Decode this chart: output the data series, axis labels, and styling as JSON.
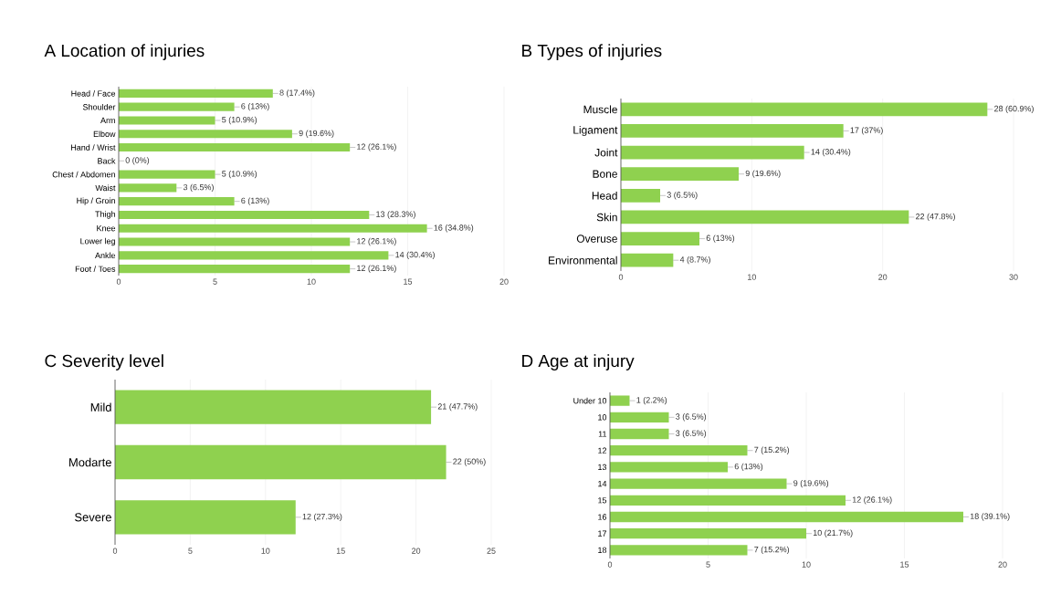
{
  "chart_data": [
    {
      "type": "bar",
      "orientation": "horizontal",
      "title": "A Location of injuries",
      "categories": [
        "Head / Face",
        "Shoulder",
        "Arm",
        "Elbow",
        "Hand / Wrist",
        "Back",
        "Chest / Abdomen",
        "Waist",
        "Hip / Groin",
        "Thigh",
        "Knee",
        "Lower leg",
        "Ankle",
        "Foot / Toes"
      ],
      "values": [
        8,
        6,
        5,
        9,
        12,
        0,
        5,
        3,
        6,
        13,
        16,
        12,
        14,
        12
      ],
      "value_labels": [
        "8 (17.4%)",
        "6 (13%)",
        "5 (10.9%)",
        "9 (19.6%)",
        "12 (26.1%)",
        "0 (0%)",
        "5 (10.9%)",
        "3 (6.5%)",
        "6 (13%)",
        "13 (28.3%)",
        "16 (34.8%)",
        "12 (26.1%)",
        "14 (30.4%)",
        "12 (26.1%)"
      ],
      "color": "#8fd14f",
      "xlim": [
        0,
        20
      ],
      "xticks": [
        0,
        5,
        10,
        15,
        20
      ],
      "grid": "x"
    },
    {
      "type": "bar",
      "orientation": "horizontal",
      "title": "B Types of injuries",
      "categories": [
        "Muscle",
        "Ligament",
        "Joint",
        "Bone",
        "Head",
        "Skin",
        "Overuse",
        "Environmental"
      ],
      "values": [
        28,
        17,
        14,
        9,
        3,
        22,
        6,
        4
      ],
      "value_labels": [
        "28 (60.9%)",
        "17 (37%)",
        "14 (30.4%)",
        "9 (19.6%)",
        "3 (6.5%)",
        "22 (47.8%)",
        "6 (13%)",
        "4 (8.7%)"
      ],
      "color": "#8fd14f",
      "xlim": [
        0,
        30
      ],
      "xticks": [
        0,
        10,
        20,
        30
      ],
      "grid": "x"
    },
    {
      "type": "bar",
      "orientation": "horizontal",
      "title": "C Severity level",
      "categories": [
        "Mild",
        "Modarte",
        "Severe"
      ],
      "values": [
        21,
        22,
        12
      ],
      "value_labels": [
        "21 (47.7%)",
        "22 (50%)",
        "12 (27.3%)"
      ],
      "color": "#8fd14f",
      "xlim": [
        0,
        25
      ],
      "xticks": [
        0,
        5,
        10,
        15,
        20,
        25
      ],
      "grid": "x"
    },
    {
      "type": "bar",
      "orientation": "horizontal",
      "title": "D Age at injury",
      "categories": [
        "Under 10",
        "10",
        "11",
        "12",
        "13",
        "14",
        "15",
        "16",
        "17",
        "18"
      ],
      "values": [
        1,
        3,
        3,
        7,
        6,
        9,
        12,
        18,
        10,
        7
      ],
      "value_labels": [
        "1 (2.2%)",
        "3 (6.5%)",
        "3 (6.5%)",
        "7 (15.2%)",
        "6 (13%)",
        "9 (19.6%)",
        "12 (26.1%)",
        "18 (39.1%)",
        "10 (21.7%)",
        "7 (15.2%)"
      ],
      "color": "#8fd14f",
      "xlim": [
        0,
        20
      ],
      "xticks": [
        0,
        5,
        10,
        15,
        20
      ],
      "grid": "x"
    }
  ]
}
